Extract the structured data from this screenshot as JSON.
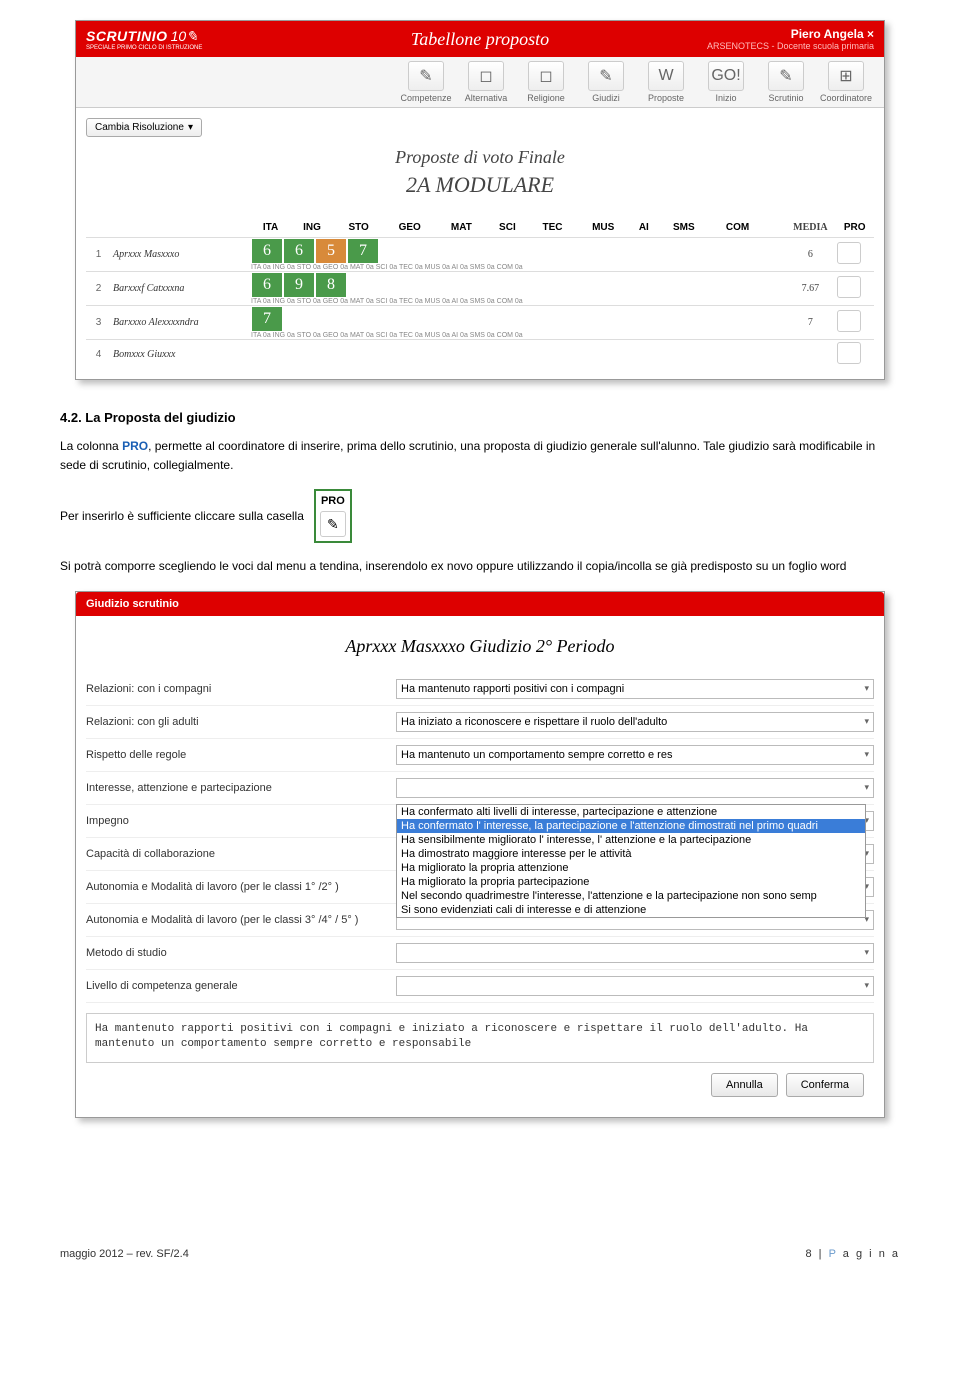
{
  "screenshot1": {
    "logo": "SCRUTINIO",
    "logo_sub": "SPECIALE PRIMO CICLO DI ISTRUZIONE",
    "header_title": "Tabellone proposto",
    "user_name": "Piero Angela",
    "user_role": "ARSENOTECS - Docente scuola primaria",
    "toolbar": [
      {
        "label": "Competenze",
        "icon": "✎"
      },
      {
        "label": "Alternativa",
        "icon": "◻"
      },
      {
        "label": "Religione",
        "icon": "◻"
      },
      {
        "label": "Giudizi",
        "icon": "✎"
      },
      {
        "label": "Proposte",
        "icon": "W"
      },
      {
        "label": "Inizio",
        "icon": "GO!"
      },
      {
        "label": "Scrutinio",
        "icon": "✎"
      },
      {
        "label": "Coordinatore",
        "icon": "⊞"
      }
    ],
    "resolution_label": "Cambia Risoluzione",
    "subtitle": "Proposte di voto   Finale",
    "class_title": "2A  MODULARE",
    "columns": [
      "ITA",
      "ING",
      "STO",
      "GEO",
      "MAT",
      "SCI",
      "TEC",
      "MUS",
      "AI",
      "SMS",
      "COM"
    ],
    "media_header": "MEDIA",
    "pro_header": "PRO",
    "sub_labels": "ITA 0a   ING 0a   STO 0a   GEO 0a   MAT 0a   SCI 0a   TEC 0a   MUS 0a   AI 0a   SMS 0a   COM 0a",
    "rows": [
      {
        "num": "1",
        "name": "Aprxxx Masxxxo",
        "grades": [
          "6",
          "6",
          "5",
          "7",
          "",
          "",
          "",
          "",
          "",
          "",
          ""
        ],
        "media": "6"
      },
      {
        "num": "2",
        "name": "Barxxxf Catxxxna",
        "grades": [
          "6",
          "9",
          "8",
          "",
          "",
          "",
          "",
          "",
          "",
          "",
          ""
        ],
        "media": "7.67"
      },
      {
        "num": "3",
        "name": "Barxxxo Alexxxxndra",
        "grades": [
          "7",
          "",
          "",
          "",
          "",
          "",
          "",
          "",
          "",
          "",
          ""
        ],
        "media": "7"
      },
      {
        "num": "4",
        "name": "Bomxxx Giuxxx",
        "grades": [
          "",
          "",
          "",
          "",
          "",
          "",
          "",
          "",
          "",
          "",
          ""
        ],
        "media": ""
      }
    ]
  },
  "section_heading": "4.2. La Proposta del giudizio",
  "para1_pre": "La colonna ",
  "para1_bold": "PRO",
  "para1_post": ", permette al coordinatore di inserire, prima dello scrutinio, una proposta di giudizio generale sull'alunno. Tale giudizio sarà modificabile in sede di scrutinio, collegialmente.",
  "para2": "Per inserirlo è sufficiente cliccare sulla casella",
  "pro_box_label": "PRO",
  "para3": "Si potrà comporre scegliendo le voci dal menu a tendina, inserendolo ex novo oppure utilizzando il copia/incolla se già predisposto su un foglio word",
  "screenshot2": {
    "bar_title": "Giudizio scrutinio",
    "title": "Aprxxx Masxxxo Giudizio 2° Periodo",
    "rows": [
      {
        "label": "Relazioni: con i compagni",
        "value": "Ha mantenuto rapporti positivi con i compagni"
      },
      {
        "label": "Relazioni: con gli adulti",
        "value": "Ha iniziato a riconoscere e rispettare il ruolo dell'adulto"
      },
      {
        "label": "Rispetto delle regole",
        "value": "Ha mantenuto un comportamento sempre corretto e res"
      },
      {
        "label": "Interesse, attenzione e partecipazione",
        "value": ""
      },
      {
        "label": "Impegno",
        "value": ""
      },
      {
        "label": "Capacità di collaborazione",
        "value": ""
      },
      {
        "label": "Autonomia e Modalità di lavoro (per le classi 1° /2° )",
        "value": ""
      },
      {
        "label": "Autonomia e Modalità di lavoro (per le classi 3° /4° / 5° )",
        "value": ""
      },
      {
        "label": "Metodo di studio",
        "value": ""
      },
      {
        "label": "Livello di competenza generale",
        "value": ""
      }
    ],
    "dropdown_options": [
      "Ha confermato alti livelli di interesse, partecipazione e attenzione",
      "Ha confermato l' interesse, la partecipazione e l'attenzione dimostrati nel primo quadri",
      "Ha sensibilmente migliorato l' interesse, l' attenzione e la partecipazione",
      "Ha dimostrato maggiore interesse per le attività",
      "Ha migliorato la propria attenzione",
      "Ha migliorato la propria partecipazione",
      "Nel secondo quadrimestre l'interesse, l'attenzione e la partecipazione non sono semp",
      "Si sono evidenziati cali di interesse e di attenzione"
    ],
    "dropdown_selected_index": 1,
    "textarea": "Ha mantenuto rapporti positivi con i compagni e iniziato a riconoscere e rispettare il ruolo dell'adulto. Ha mantenuto un comportamento sempre corretto e responsabile",
    "btn_cancel": "Annulla",
    "btn_confirm": "Conferma"
  },
  "footer_left": "maggio 2012 – rev. SF/2.4",
  "footer_page_num": "8",
  "footer_page_label_parts": [
    "P",
    "a",
    "g",
    "i",
    "n",
    "a"
  ],
  "colors": {
    "brand_red": "#dd0000",
    "grade_green": "#4a9a4a",
    "grade_orange": "#d88a3a",
    "link_blue": "#1a5fb4",
    "dropdown_blue": "#3a7dd8"
  }
}
